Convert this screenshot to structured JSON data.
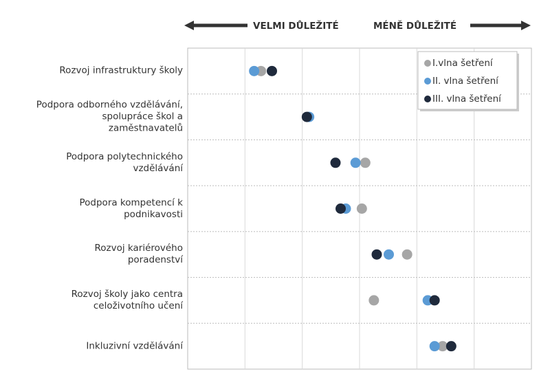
{
  "chart_data": {
    "type": "dot",
    "annotations": [
      "VELMI DŮLEŽITÉ",
      "MÉNĚ DŮLEŽITÉ"
    ],
    "categories": [
      "Rozvoj infrastruktury školy",
      "Podpora odborného vzdělávání,\nspolupráce škol a\nzaměstnavatelů",
      "Podpora polytechnického\nvzdělávání",
      "Podpora kompetencí k\npodnikavosti",
      "Rozvoj kariérového\nporadenství",
      "Rozvoj školy jako centra\nceloživotního učení",
      "Inkluzivní vzdělávání"
    ],
    "series": [
      {
        "name": "I.vlna šetření",
        "color": "#a6a6a6",
        "values": [
          1.28,
          2.1,
          3.1,
          3.04,
          3.83,
          3.25,
          4.45
        ]
      },
      {
        "name": "II. vlna šetření",
        "color": "#5b9bd5",
        "values": [
          1.16,
          2.12,
          2.93,
          2.76,
          3.51,
          4.19,
          4.31
        ]
      },
      {
        "name": "III. vlna šetření",
        "color": "#1f2a3c",
        "values": [
          1.47,
          2.08,
          2.58,
          2.67,
          3.3,
          4.31,
          4.6
        ]
      }
    ],
    "xlim": [
      0,
      6
    ],
    "xticks": [
      1,
      2,
      3,
      4,
      5
    ],
    "grid": true,
    "legend": "upper right"
  }
}
